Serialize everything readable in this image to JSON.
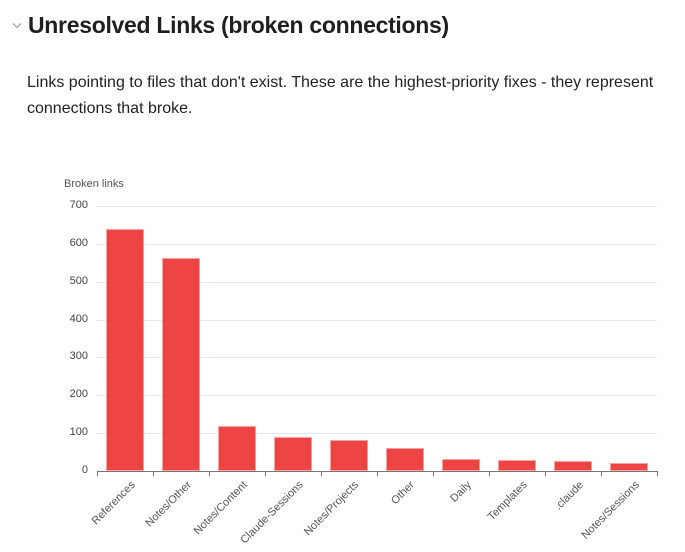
{
  "section": {
    "collapse_icon": "chevron-down-icon",
    "title": "Unresolved Links (broken connections)",
    "description": "Links pointing to files that don't exist. These are the highest-priority fixes - they represent connections that broke."
  },
  "chart_data": {
    "type": "bar",
    "title": "",
    "xlabel": "",
    "ylabel": "Broken links",
    "categories": [
      "References",
      "Notes/Other",
      "Notes/Content",
      "Claude-Sessions",
      "Notes/Projects",
      "Other",
      "Daily",
      "Templates",
      ".claude",
      "Notes/Sessions"
    ],
    "values": [
      639,
      563,
      119,
      90,
      82,
      62,
      33,
      30,
      26,
      20
    ],
    "ylim": [
      0,
      700
    ],
    "yticks": [
      0,
      100,
      200,
      300,
      400,
      500,
      600,
      700
    ],
    "grid": true,
    "legend": null,
    "bar_color": "#ef4444"
  }
}
